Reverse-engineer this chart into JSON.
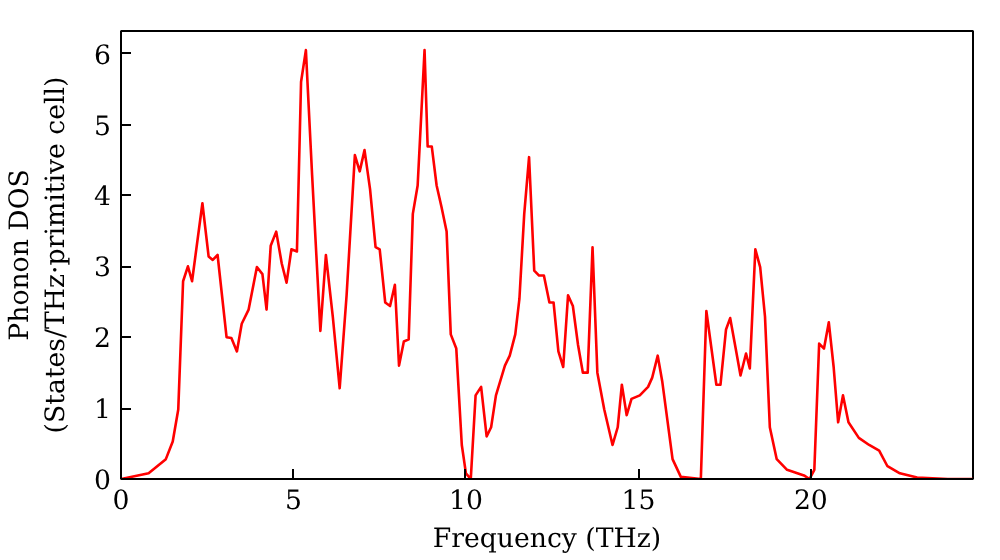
{
  "chart_data": {
    "type": "line",
    "xlabel": "Frequency (THz)",
    "ylabel": "Phonon DOS\n(States/THz·primitive cell)",
    "xlim": [
      0,
      24.7
    ],
    "ylim": [
      0,
      6.32
    ],
    "xticks": [
      0,
      5,
      10,
      15,
      20
    ],
    "yticks": [
      0,
      1,
      2,
      3,
      4,
      5,
      6
    ],
    "grid": false,
    "marker": "none",
    "line_style": "solid",
    "x": [
      0,
      0.8,
      1.3,
      1.5,
      1.66,
      1.8,
      1.94,
      2.06,
      2.36,
      2.54,
      2.66,
      2.8,
      3.06,
      3.2,
      3.36,
      3.5,
      3.7,
      3.94,
      4.1,
      4.22,
      4.34,
      4.5,
      4.66,
      4.8,
      4.94,
      5.1,
      5.22,
      5.36,
      5.54,
      5.78,
      5.94,
      6.14,
      6.34,
      6.54,
      6.78,
      6.92,
      7.06,
      7.22,
      7.38,
      7.5,
      7.66,
      7.8,
      7.94,
      8.06,
      8.2,
      8.34,
      8.46,
      8.6,
      8.8,
      8.89,
      9.01,
      9.15,
      9.29,
      9.44,
      9.56,
      9.72,
      9.88,
      10.0,
      10.14,
      10.28,
      10.44,
      10.6,
      10.73,
      10.87,
      11.13,
      11.27,
      11.43,
      11.55,
      11.69,
      11.83,
      11.98,
      12.12,
      12.26,
      12.42,
      12.54,
      12.68,
      12.82,
      12.96,
      13.1,
      13.25,
      13.39,
      13.53,
      13.67,
      13.81,
      14.01,
      14.25,
      14.4,
      14.52,
      14.66,
      14.8,
      15.04,
      15.28,
      15.4,
      15.56,
      15.69,
      15.99,
      16.23,
      16.81,
      16.97,
      17.26,
      17.38,
      17.54,
      17.66,
      17.82,
      17.96,
      18.12,
      18.23,
      18.39,
      18.53,
      18.67,
      18.81,
      19.01,
      19.31,
      19.8,
      19.96,
      20.1,
      20.24,
      20.38,
      20.52,
      20.66,
      20.79,
      20.93,
      21.09,
      21.39,
      21.69,
      21.98,
      22.22,
      22.58,
      23.08,
      23.97,
      24.7
    ],
    "series": [
      {
        "color": "#ff0000",
        "values": [
          0,
          0.08,
          0.28,
          0.53,
          0.98,
          2.79,
          3.0,
          2.79,
          3.89,
          3.14,
          3.09,
          3.16,
          2.0,
          1.99,
          1.8,
          2.19,
          2.39,
          2.99,
          2.89,
          2.39,
          3.29,
          3.49,
          3.04,
          2.77,
          3.24,
          3.21,
          5.6,
          6.05,
          4.29,
          2.09,
          3.16,
          2.29,
          1.28,
          2.59,
          4.57,
          4.34,
          4.64,
          4.09,
          3.27,
          3.24,
          2.49,
          2.44,
          2.74,
          1.6,
          1.94,
          1.97,
          3.74,
          4.14,
          6.05,
          4.69,
          4.69,
          4.14,
          3.84,
          3.49,
          2.04,
          1.84,
          0.48,
          0.08,
          0,
          1.18,
          1.3,
          0.6,
          0.73,
          1.18,
          1.6,
          1.74,
          2.04,
          2.54,
          3.74,
          4.54,
          2.94,
          2.87,
          2.87,
          2.49,
          2.49,
          1.8,
          1.58,
          2.59,
          2.44,
          1.89,
          1.5,
          1.5,
          3.27,
          1.5,
          0.98,
          0.48,
          0.73,
          1.33,
          0.9,
          1.13,
          1.18,
          1.3,
          1.43,
          1.74,
          1.38,
          0.28,
          0.03,
          0,
          2.37,
          1.33,
          1.33,
          2.11,
          2.27,
          1.84,
          1.46,
          1.77,
          1.56,
          3.24,
          2.99,
          2.29,
          0.73,
          0.28,
          0.13,
          0.05,
          0,
          0.13,
          1.91,
          1.84,
          2.21,
          1.58,
          0.8,
          1.18,
          0.8,
          0.58,
          0.48,
          0.4,
          0.18,
          0.08,
          0.02,
          0,
          0
        ]
      }
    ]
  }
}
